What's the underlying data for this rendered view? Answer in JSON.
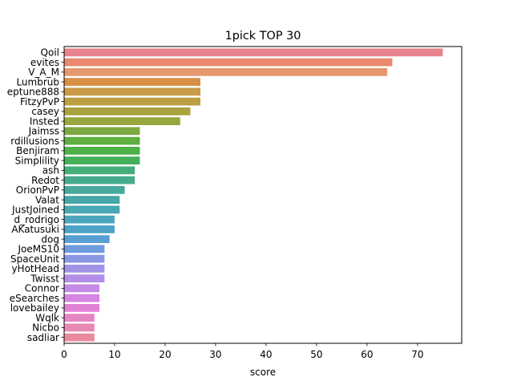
{
  "chart_data": {
    "type": "bar",
    "orientation": "horizontal",
    "title": "1pick TOP 30",
    "xlabel": "score",
    "ylabel": "",
    "xlim": [
      0,
      78.75
    ],
    "xticks": [
      0,
      10,
      20,
      30,
      40,
      50,
      60,
      70
    ],
    "grid": false,
    "legend": "none",
    "categories": [
      "Qoil",
      "evites",
      "V_A_M",
      "Lumbrub",
      "eptune888",
      "FitzyPvP",
      "casey",
      "Insted",
      "Jaimss",
      "rdillusions",
      "Benjiram",
      "Simplility",
      "ash",
      "Redot",
      "OrionPvP",
      "Valat",
      "JustJoined",
      "d_rodrigo",
      "AKatusuki",
      "dog",
      "JoeMS10",
      "SpaceUnit",
      "yHotHead",
      "Twisst",
      "Connor",
      "eSearches",
      "lovebailey",
      "Wqlk",
      "Nicbo",
      "sadliar"
    ],
    "values": [
      75,
      65,
      64,
      27,
      27,
      27,
      25,
      23,
      15,
      15,
      15,
      15,
      14,
      14,
      12,
      11,
      11,
      10,
      10,
      9,
      8,
      8,
      8,
      8,
      7,
      7,
      7,
      6,
      6,
      6
    ],
    "colors": [
      "#e8828d",
      "#e9896f",
      "#e6976e",
      "#d98f45",
      "#c99a47",
      "#bc9f43",
      "#a9a23f",
      "#97a73e",
      "#7caa40",
      "#5fae3f",
      "#4cb147",
      "#45b05a",
      "#44ad7a",
      "#46ab8d",
      "#46a99c",
      "#45a7a6",
      "#48a8b4",
      "#4ba6bd",
      "#4ea3c6",
      "#579fd4",
      "#6e9bdf",
      "#8a98e4",
      "#9f94e8",
      "#b28ee9",
      "#c58ae6",
      "#d685e2",
      "#e282d6",
      "#e784c4",
      "#ea87b2",
      "#ea8a9d"
    ]
  }
}
